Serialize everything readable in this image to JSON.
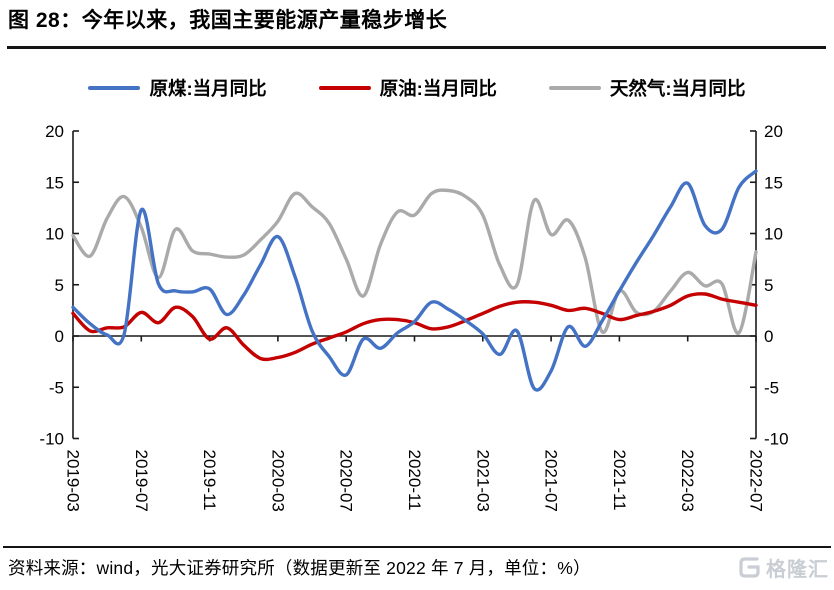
{
  "title": "图 28：今年以来，我国主要能源产量稳步增长",
  "legend": [
    {
      "label": "原煤:当月同比",
      "color": "#4472C4"
    },
    {
      "label": "原油:当月同比",
      "color": "#C40000"
    },
    {
      "label": "天然气:当月同比",
      "color": "#AAAAAA"
    }
  ],
  "footer": {
    "source": "资料来源：wind，光大证券研究所（数据更新至 2022 年 7 月，单位：%）",
    "logo_text": "格隆汇"
  },
  "chart_data": {
    "type": "line",
    "title": "今年以来，我国主要能源产量稳步增长",
    "unit": "%",
    "ylim": [
      -10,
      20
    ],
    "yticks": [
      -10,
      -5,
      0,
      5,
      10,
      15,
      20
    ],
    "grid": false,
    "legend_position": "top",
    "x_tick_step": 4,
    "x": [
      "2019-03",
      "2019-04",
      "2019-05",
      "2019-06",
      "2019-07",
      "2019-08",
      "2019-09",
      "2019-10",
      "2019-11",
      "2019-12",
      "2020-01",
      "2020-02",
      "2020-03",
      "2020-04",
      "2020-05",
      "2020-06",
      "2020-07",
      "2020-08",
      "2020-09",
      "2020-10",
      "2020-11",
      "2020-12",
      "2021-01",
      "2021-02",
      "2021-03",
      "2021-04",
      "2021-05",
      "2021-06",
      "2021-07",
      "2021-08",
      "2021-09",
      "2021-10",
      "2021-11",
      "2021-12",
      "2022-01",
      "2022-02",
      "2022-03",
      "2022-04",
      "2022-05",
      "2022-06",
      "2022-07"
    ],
    "series": [
      {
        "key": "coal",
        "name": "原煤:当月同比",
        "color": "#4472C4",
        "values": [
          2.8,
          1.2,
          0.1,
          0.2,
          12.3,
          5.1,
          4.4,
          4.3,
          4.6,
          2.1,
          4.0,
          7.0,
          9.7,
          5.8,
          0.5,
          -2.0,
          -3.8,
          -0.3,
          -1.2,
          0.3,
          1.4,
          3.3,
          2.6,
          1.5,
          0.2,
          -1.8,
          0.5,
          -5.1,
          -3.4,
          0.9,
          -1.0,
          1.5,
          4.4,
          7.2,
          9.8,
          12.6,
          14.9,
          10.8,
          10.4,
          14.5,
          16.1
        ]
      },
      {
        "key": "oil",
        "name": "原油:当月同比",
        "color": "#C40000",
        "values": [
          2.2,
          0.5,
          0.8,
          0.9,
          2.3,
          1.3,
          2.8,
          1.9,
          -0.3,
          0.8,
          -0.9,
          -2.2,
          -2.1,
          -1.6,
          -0.8,
          -0.2,
          0.4,
          1.2,
          1.6,
          1.6,
          1.3,
          0.7,
          0.9,
          1.5,
          2.2,
          2.9,
          3.3,
          3.3,
          3.0,
          2.5,
          2.7,
          2.2,
          1.6,
          2.0,
          2.4,
          3.0,
          3.9,
          4.1,
          3.6,
          3.3,
          3.0
        ]
      },
      {
        "key": "gas",
        "name": "天然气:当月同比",
        "color": "#AAAAAA",
        "values": [
          9.8,
          7.8,
          11.5,
          13.6,
          10.6,
          5.7,
          10.4,
          8.3,
          8.0,
          7.7,
          7.9,
          9.4,
          11.2,
          13.9,
          12.6,
          11.0,
          7.5,
          3.9,
          8.9,
          12.1,
          11.8,
          13.9,
          14.2,
          13.6,
          11.8,
          6.9,
          5.0,
          13.2,
          9.9,
          11.3,
          7.6,
          0.4,
          4.4,
          2.3,
          2.4,
          4.4,
          6.2,
          4.9,
          5.1,
          0.3,
          8.2
        ]
      }
    ]
  }
}
